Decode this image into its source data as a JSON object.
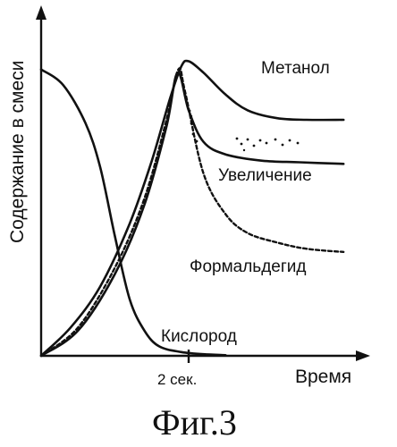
{
  "chart_data": {
    "type": "line",
    "xlabel": "Время",
    "ylabel": "Содержание в смеси",
    "x_tick": {
      "value": 2,
      "label": "2 сек."
    },
    "xlim": [
      0,
      4.4
    ],
    "ylim": [
      0,
      1.0
    ],
    "series": [
      {
        "name": "Метанол",
        "style": "solid",
        "points": [
          [
            0,
            0
          ],
          [
            0.4,
            0.09
          ],
          [
            0.8,
            0.22
          ],
          [
            1.2,
            0.42
          ],
          [
            1.5,
            0.62
          ],
          [
            1.75,
            0.82
          ],
          [
            1.9,
            0.92
          ],
          [
            2.0,
            0.936
          ],
          [
            2.2,
            0.9
          ],
          [
            2.5,
            0.83
          ],
          [
            2.8,
            0.78
          ],
          [
            3.2,
            0.755
          ],
          [
            3.6,
            0.75
          ],
          [
            4.1,
            0.75
          ]
        ]
      },
      {
        "name": "Кислород",
        "style": "solid",
        "points": [
          [
            0,
            0.91
          ],
          [
            0.3,
            0.86
          ],
          [
            0.6,
            0.74
          ],
          [
            0.8,
            0.6
          ],
          [
            1.0,
            0.38
          ],
          [
            1.2,
            0.18
          ],
          [
            1.4,
            0.08
          ],
          [
            1.6,
            0.03
          ],
          [
            1.9,
            0.012
          ],
          [
            2.2,
            0.005
          ],
          [
            2.5,
            0.002
          ]
        ]
      },
      {
        "name": "Формальдегид",
        "style": "dashed",
        "points": [
          [
            0,
            0
          ],
          [
            0.5,
            0.09
          ],
          [
            1.0,
            0.28
          ],
          [
            1.4,
            0.5
          ],
          [
            1.7,
            0.75
          ],
          [
            1.86,
            0.91
          ],
          [
            1.95,
            0.84
          ],
          [
            2.2,
            0.58
          ],
          [
            2.5,
            0.45
          ],
          [
            2.8,
            0.39
          ],
          [
            3.2,
            0.36
          ],
          [
            3.6,
            0.34
          ],
          [
            4.1,
            0.33
          ]
        ]
      },
      {
        "name": "Увеличение",
        "style": "solid",
        "points": [
          [
            0,
            0
          ],
          [
            0.5,
            0.08
          ],
          [
            1.0,
            0.26
          ],
          [
            1.4,
            0.48
          ],
          [
            1.7,
            0.73
          ],
          [
            1.85,
            0.9
          ],
          [
            2.0,
            0.78
          ],
          [
            2.2,
            0.68
          ],
          [
            2.5,
            0.64
          ],
          [
            3.0,
            0.62
          ],
          [
            3.5,
            0.615
          ],
          [
            4.1,
            0.61
          ]
        ]
      }
    ],
    "grid": false,
    "legend": "inline labels"
  },
  "caption": "Фиг.3"
}
